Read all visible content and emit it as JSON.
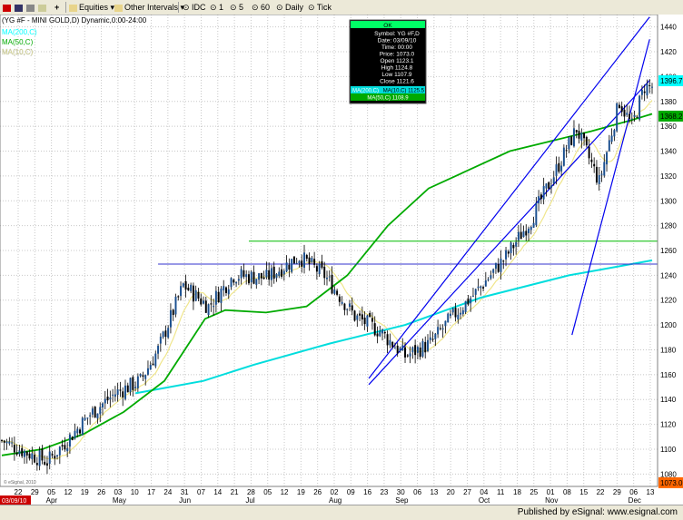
{
  "toolbar": {
    "symbol": "YG #F",
    "equities": "Equities",
    "intervals": "Other Intervals",
    "idc": "IDC",
    "b1": "1",
    "b5": "5",
    "b60": "60",
    "daily": "Daily",
    "tick": "Tick"
  },
  "footer": {
    "published": "Published by eSignal: www.esignal.com"
  },
  "chart_data": {
    "type": "candlestick",
    "title": "(YG #F - MINI GOLD,D) Dynamic,0:00-24:00",
    "legend": [
      {
        "name": "MA(200,C)",
        "color": "#00ffff"
      },
      {
        "name": "MA(50,C)",
        "color": "#00aa00"
      },
      {
        "name": "MA(10,C)",
        "color": "#ffff99"
      }
    ],
    "ylim": [
      1070,
      1450
    ],
    "ticks_y": [
      1080,
      1100,
      1120,
      1140,
      1160,
      1180,
      1200,
      1220,
      1240,
      1260,
      1280,
      1300,
      1320,
      1340,
      1360,
      1380,
      1400,
      1420,
      1440
    ],
    "x_day_labels": [
      "22",
      "29",
      "05",
      "12",
      "19",
      "26",
      "03",
      "10",
      "17",
      "24",
      "31",
      "07",
      "14",
      "21",
      "28",
      "05",
      "12",
      "19",
      "26",
      "02",
      "09",
      "16",
      "23",
      "30",
      "06",
      "13",
      "20",
      "27",
      "04",
      "11",
      "18",
      "25",
      "01",
      "08",
      "15",
      "22",
      "29",
      "06",
      "13"
    ],
    "x_month_labels": [
      "Apr",
      "May",
      "Jun",
      "Jul",
      "Aug",
      "Sep",
      "Oct",
      "Nov",
      "Dec"
    ],
    "x_start_label": "03/09/10",
    "price_tags": [
      {
        "value": "1396.7",
        "y": 1396.7,
        "color": "#00ffff"
      },
      {
        "value": "1368.2",
        "y": 1368.2,
        "color": "#00aa00"
      },
      {
        "value": "1073.0",
        "y": 1073.0,
        "color": "#ff6600"
      }
    ],
    "hlines": [
      {
        "y": 1267.5,
        "color": "#00bb00"
      },
      {
        "y": 1249,
        "color": "#3333cc"
      }
    ],
    "channel": [
      {
        "from": [
          56,
          1157
        ],
        "to": [
          257,
          1448
        ]
      },
      {
        "from": [
          56,
          1152
        ],
        "to": [
          257,
          1397
        ]
      },
      {
        "from": [
          87,
          1192
        ],
        "to": [
          257,
          1430
        ]
      }
    ],
    "ma200": [
      [
        53,
        1145
      ],
      [
        80,
        1155
      ],
      [
        100,
        1168
      ],
      [
        130,
        1185
      ],
      [
        160,
        1200
      ],
      [
        190,
        1222
      ],
      [
        225,
        1240
      ],
      [
        258,
        1252
      ]
    ],
    "ma50": [
      [
        0,
        1095
      ],
      [
        10,
        1100
      ],
      [
        20,
        1112
      ],
      [
        30,
        1130
      ],
      [
        40,
        1155
      ],
      [
        45,
        1180
      ],
      [
        50,
        1205
      ],
      [
        55,
        1212
      ],
      [
        65,
        1210
      ],
      [
        75,
        1215
      ],
      [
        85,
        1240
      ],
      [
        95,
        1280
      ],
      [
        105,
        1310
      ],
      [
        115,
        1325
      ],
      [
        125,
        1340
      ],
      [
        135,
        1348
      ],
      [
        145,
        1356
      ],
      [
        155,
        1365
      ],
      [
        160,
        1370
      ]
    ],
    "tooltip": {
      "header": "OK",
      "rows": [
        "Symbol: YG #F,D",
        "Date: 03/09/10",
        "Time: 00:00",
        "Price: 1073.0",
        "Open 1123.1",
        "High 1124.8",
        "Low 1107.9",
        "Close 1121.6"
      ],
      "ma200_row": "MA(200,C)",
      "ma10_row": "MA(10,C) 1125.5",
      "ma50_row": "MA(50,C) 1108.9"
    },
    "copyright": "© eSignal, 2010"
  }
}
